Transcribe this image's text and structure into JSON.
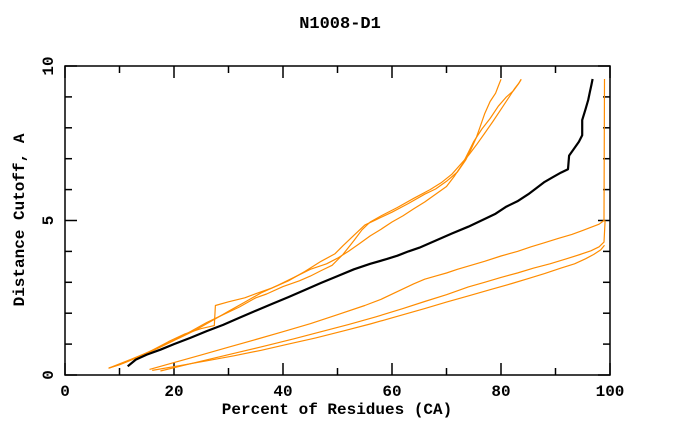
{
  "chart_data": {
    "type": "line",
    "title": "N1008-D1",
    "xlabel": "Percent of Residues (CA)",
    "ylabel": "Distance Cutoff, A",
    "xlim": [
      0,
      100
    ],
    "ylim": [
      0,
      10
    ],
    "x_major_ticks": [
      0,
      20,
      40,
      60,
      80,
      100
    ],
    "x_minor_ticks": [
      10,
      30,
      50,
      70,
      90
    ],
    "y_major_ticks": [
      0,
      5,
      10
    ],
    "y_minor_ticks": [
      1,
      2,
      3,
      4,
      6,
      7,
      8,
      9
    ],
    "grid": false,
    "legend": null,
    "colors": {
      "orange": "#ff8c00",
      "black": "#000000",
      "background": "#ffffff"
    },
    "series": [
      {
        "name": "orange-upper-1",
        "color": "#ff8c00",
        "width": 1.2,
        "points": [
          [
            8,
            0.22
          ],
          [
            10,
            0.33
          ],
          [
            13,
            0.55
          ],
          [
            16,
            0.8
          ],
          [
            19,
            1.08
          ],
          [
            22,
            1.33
          ],
          [
            25,
            1.5
          ],
          [
            27.4,
            1.6
          ],
          [
            27.6,
            2.25
          ],
          [
            30,
            2.37
          ],
          [
            33,
            2.5
          ],
          [
            35,
            2.63
          ],
          [
            38,
            2.82
          ],
          [
            41,
            3.05
          ],
          [
            44,
            3.35
          ],
          [
            47,
            3.68
          ],
          [
            49.5,
            3.92
          ],
          [
            51,
            4.18
          ],
          [
            53,
            4.52
          ],
          [
            55,
            4.85
          ],
          [
            57,
            5.02
          ],
          [
            60,
            5.27
          ],
          [
            63,
            5.55
          ],
          [
            66,
            5.85
          ],
          [
            68,
            6.02
          ],
          [
            70,
            6.27
          ],
          [
            72,
            6.57
          ],
          [
            73.5,
            6.95
          ],
          [
            74.5,
            7.3
          ],
          [
            75.5,
            7.7
          ],
          [
            76.2,
            8.05
          ],
          [
            77,
            8.45
          ],
          [
            78,
            8.85
          ],
          [
            79,
            9.12
          ],
          [
            79.5,
            9.35
          ],
          [
            80,
            9.57
          ]
        ]
      },
      {
        "name": "orange-upper-2",
        "color": "#ff8c00",
        "width": 1.2,
        "points": [
          [
            8,
            0.22
          ],
          [
            11,
            0.4
          ],
          [
            14,
            0.62
          ],
          [
            17,
            0.86
          ],
          [
            20,
            1.12
          ],
          [
            23,
            1.4
          ],
          [
            26,
            1.7
          ],
          [
            29,
            1.95
          ],
          [
            32,
            2.2
          ],
          [
            35,
            2.5
          ],
          [
            37,
            2.62
          ],
          [
            40,
            2.86
          ],
          [
            43,
            3.05
          ],
          [
            45,
            3.2
          ],
          [
            47,
            3.38
          ],
          [
            49,
            3.55
          ],
          [
            51,
            3.9
          ],
          [
            53,
            4.35
          ],
          [
            54.5,
            4.7
          ],
          [
            56,
            4.95
          ],
          [
            58,
            5.15
          ],
          [
            61,
            5.42
          ],
          [
            64,
            5.72
          ],
          [
            67,
            6.0
          ],
          [
            69,
            6.22
          ],
          [
            71,
            6.5
          ],
          [
            72.5,
            6.8
          ],
          [
            74,
            7.1
          ],
          [
            75.5,
            7.45
          ],
          [
            77,
            7.82
          ],
          [
            78.5,
            8.2
          ],
          [
            80,
            8.6
          ],
          [
            81.5,
            9.0
          ],
          [
            82.5,
            9.27
          ],
          [
            83.3,
            9.45
          ],
          [
            83.7,
            9.57
          ]
        ]
      },
      {
        "name": "orange-upper-3",
        "color": "#ff8c00",
        "width": 1.2,
        "points": [
          [
            8,
            0.22
          ],
          [
            12,
            0.5
          ],
          [
            15,
            0.72
          ],
          [
            18,
            0.96
          ],
          [
            21,
            1.2
          ],
          [
            24,
            1.46
          ],
          [
            27,
            1.76
          ],
          [
            30,
            2.06
          ],
          [
            33,
            2.36
          ],
          [
            36,
            2.66
          ],
          [
            39,
            2.9
          ],
          [
            42,
            3.16
          ],
          [
            45,
            3.42
          ],
          [
            48,
            3.6
          ],
          [
            50,
            3.78
          ],
          [
            52,
            4.0
          ],
          [
            54,
            4.25
          ],
          [
            56,
            4.5
          ],
          [
            58,
            4.72
          ],
          [
            60,
            4.95
          ],
          [
            62,
            5.15
          ],
          [
            64,
            5.38
          ],
          [
            66,
            5.6
          ],
          [
            68,
            5.85
          ],
          [
            70,
            6.1
          ],
          [
            71.5,
            6.45
          ],
          [
            73,
            6.85
          ],
          [
            74,
            7.2
          ],
          [
            75,
            7.56
          ],
          [
            76.5,
            7.96
          ],
          [
            78,
            8.3
          ],
          [
            79.5,
            8.7
          ],
          [
            81,
            9.0
          ],
          [
            82.3,
            9.2
          ],
          [
            83.2,
            9.42
          ],
          [
            83.7,
            9.57
          ]
        ]
      },
      {
        "name": "orange-lower-1",
        "color": "#ff8c00",
        "width": 1.2,
        "points": [
          [
            15.5,
            0.18
          ],
          [
            20,
            0.4
          ],
          [
            25,
            0.65
          ],
          [
            30,
            0.9
          ],
          [
            35,
            1.15
          ],
          [
            40,
            1.4
          ],
          [
            45,
            1.66
          ],
          [
            50,
            1.95
          ],
          [
            55,
            2.25
          ],
          [
            58,
            2.45
          ],
          [
            61,
            2.7
          ],
          [
            64,
            2.95
          ],
          [
            66,
            3.1
          ],
          [
            68,
            3.2
          ],
          [
            70,
            3.3
          ],
          [
            72,
            3.42
          ],
          [
            74.5,
            3.55
          ],
          [
            77,
            3.68
          ],
          [
            80,
            3.85
          ],
          [
            83,
            4.0
          ],
          [
            85.5,
            4.15
          ],
          [
            88,
            4.28
          ],
          [
            90.5,
            4.42
          ],
          [
            93,
            4.55
          ],
          [
            95,
            4.68
          ],
          [
            96.5,
            4.78
          ],
          [
            98,
            4.88
          ],
          [
            98.9,
            5.0
          ],
          [
            99,
            9.58
          ]
        ]
      },
      {
        "name": "orange-lower-2",
        "color": "#ff8c00",
        "width": 1.2,
        "points": [
          [
            17.5,
            0.13
          ],
          [
            22,
            0.32
          ],
          [
            27,
            0.53
          ],
          [
            32,
            0.74
          ],
          [
            37,
            0.95
          ],
          [
            42,
            1.17
          ],
          [
            47,
            1.4
          ],
          [
            52,
            1.63
          ],
          [
            57,
            1.88
          ],
          [
            62,
            2.15
          ],
          [
            66,
            2.38
          ],
          [
            70,
            2.6
          ],
          [
            74,
            2.85
          ],
          [
            77,
            3.0
          ],
          [
            80,
            3.16
          ],
          [
            83,
            3.3
          ],
          [
            86,
            3.46
          ],
          [
            89,
            3.6
          ],
          [
            92,
            3.76
          ],
          [
            94.5,
            3.9
          ],
          [
            96.5,
            4.02
          ],
          [
            98,
            4.15
          ],
          [
            98.9,
            4.3
          ],
          [
            99.1,
            5.0
          ]
        ]
      },
      {
        "name": "orange-lower-3",
        "color": "#ff8c00",
        "width": 1.2,
        "points": [
          [
            16,
            0.15
          ],
          [
            21,
            0.3
          ],
          [
            26,
            0.46
          ],
          [
            31,
            0.62
          ],
          [
            36,
            0.8
          ],
          [
            41,
            1.0
          ],
          [
            46,
            1.2
          ],
          [
            51,
            1.42
          ],
          [
            56,
            1.65
          ],
          [
            61,
            1.9
          ],
          [
            66,
            2.15
          ],
          [
            70,
            2.36
          ],
          [
            74,
            2.56
          ],
          [
            78,
            2.76
          ],
          [
            82,
            2.96
          ],
          [
            85,
            3.12
          ],
          [
            88,
            3.28
          ],
          [
            91,
            3.46
          ],
          [
            93.5,
            3.6
          ],
          [
            95.5,
            3.76
          ],
          [
            97,
            3.9
          ],
          [
            98.3,
            4.05
          ],
          [
            99,
            4.2
          ]
        ]
      },
      {
        "name": "black-reference",
        "color": "#000000",
        "width": 2.2,
        "points": [
          [
            11.5,
            0.28
          ],
          [
            13,
            0.5
          ],
          [
            15,
            0.66
          ],
          [
            17.5,
            0.82
          ],
          [
            20,
            1.0
          ],
          [
            23,
            1.2
          ],
          [
            26,
            1.42
          ],
          [
            29,
            1.62
          ],
          [
            32,
            1.85
          ],
          [
            35,
            2.08
          ],
          [
            38,
            2.3
          ],
          [
            41,
            2.52
          ],
          [
            44,
            2.75
          ],
          [
            47,
            2.98
          ],
          [
            50,
            3.2
          ],
          [
            53,
            3.42
          ],
          [
            56,
            3.6
          ],
          [
            59,
            3.75
          ],
          [
            61,
            3.86
          ],
          [
            63,
            4.0
          ],
          [
            65,
            4.12
          ],
          [
            68,
            4.35
          ],
          [
            71,
            4.58
          ],
          [
            74,
            4.8
          ],
          [
            77,
            5.05
          ],
          [
            79,
            5.22
          ],
          [
            81,
            5.45
          ],
          [
            83,
            5.62
          ],
          [
            85,
            5.85
          ],
          [
            86.5,
            6.05
          ],
          [
            88,
            6.25
          ],
          [
            89.5,
            6.4
          ],
          [
            91,
            6.55
          ],
          [
            92.3,
            6.66
          ],
          [
            92.5,
            7.1
          ],
          [
            93.5,
            7.35
          ],
          [
            94.3,
            7.55
          ],
          [
            94.9,
            7.76
          ],
          [
            94.9,
            8.25
          ],
          [
            95.5,
            8.6
          ],
          [
            96,
            8.9
          ],
          [
            96.3,
            9.15
          ],
          [
            96.6,
            9.4
          ],
          [
            96.8,
            9.58
          ]
        ]
      }
    ]
  }
}
